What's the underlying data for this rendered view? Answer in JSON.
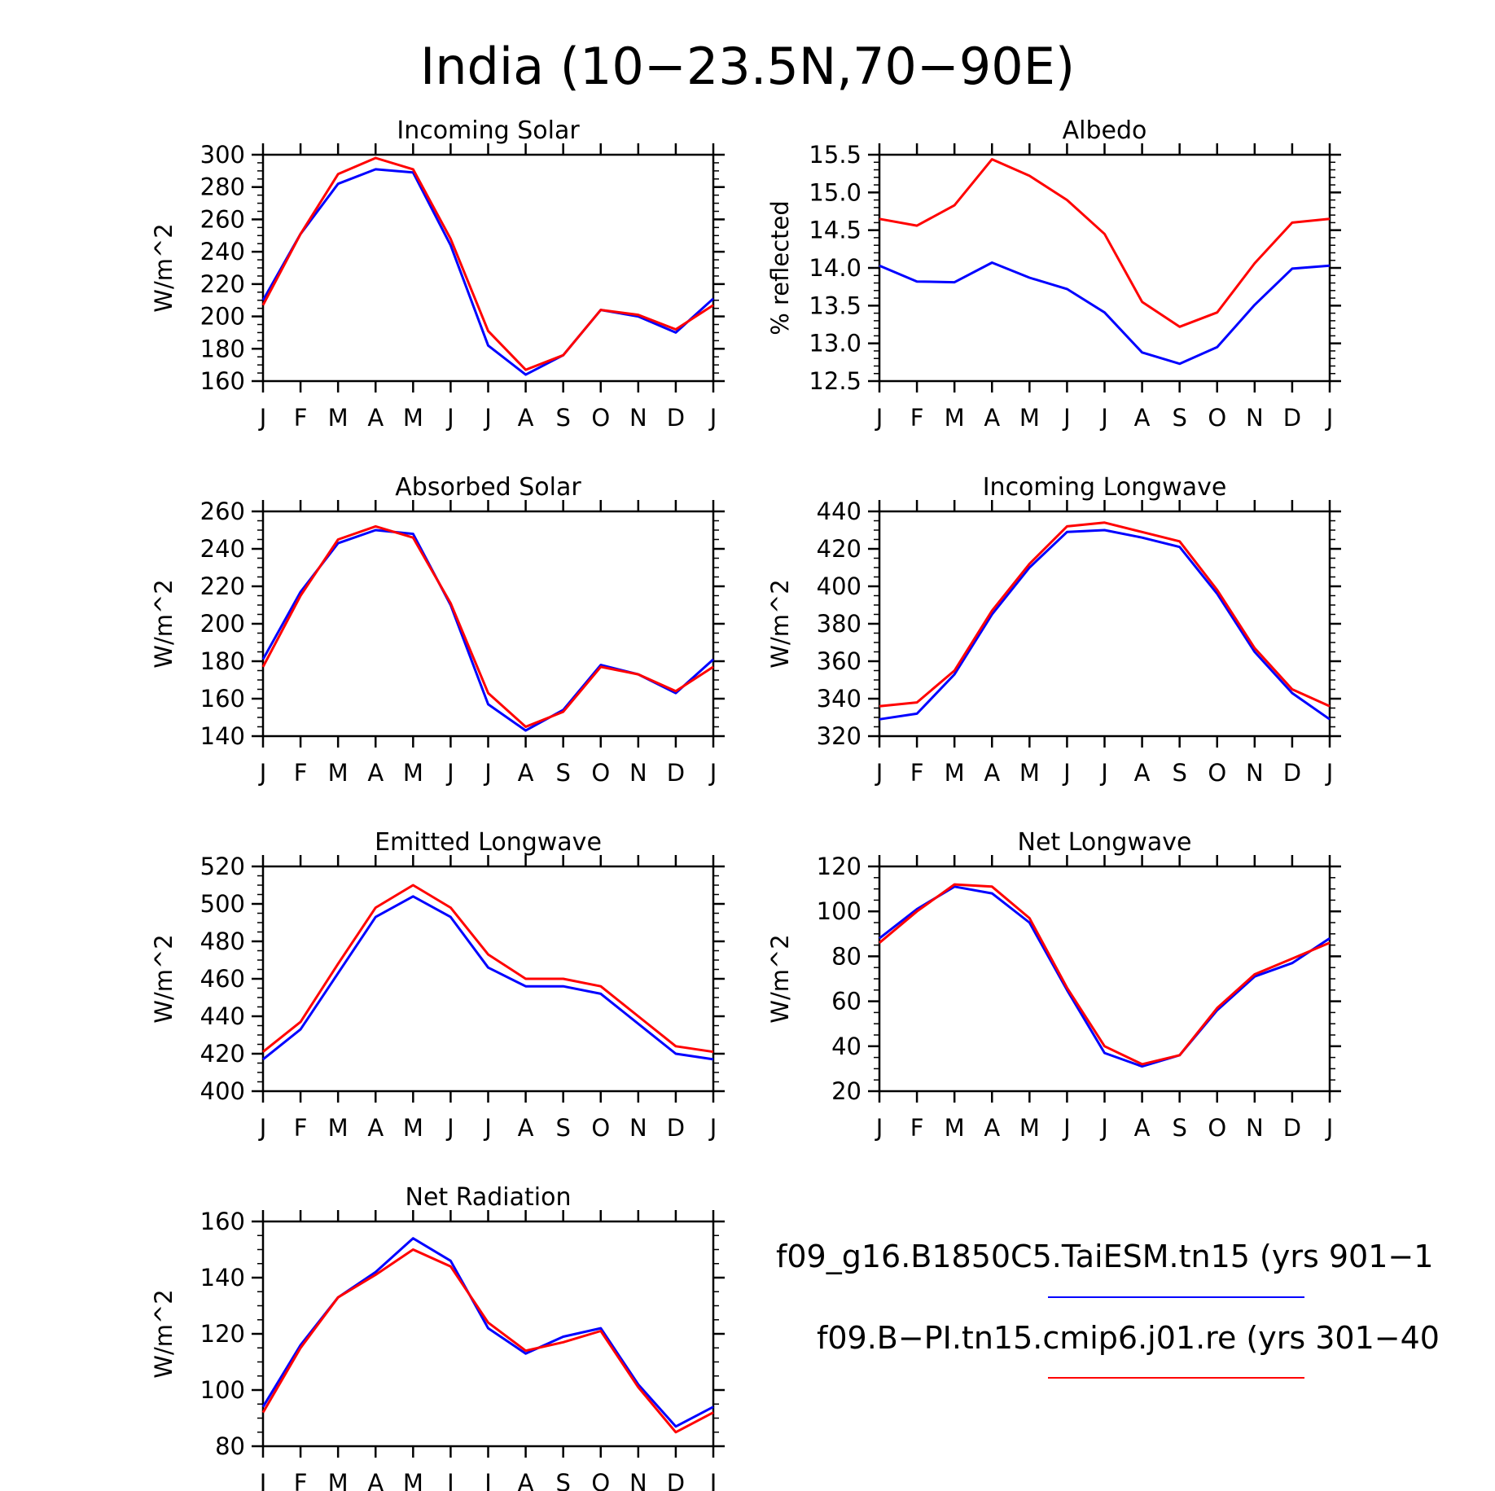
{
  "page": {
    "title": "India (10−23.5N,70−90E)"
  },
  "colors": {
    "series1": "#0000ff",
    "series2": "#ff0000",
    "axis": "#000000"
  },
  "legend": {
    "items": [
      {
        "label": "f09_g16.B1850C5.TaiESM.tn15 (yrs 901−1",
        "color": "#0000ff"
      },
      {
        "label": "f09.B−PI.tn15.cmip6.j01.re (yrs 301−40",
        "color": "#ff0000"
      }
    ]
  },
  "chart_data": [
    {
      "type": "line",
      "title": "Incoming Solar",
      "ylabel": "W/m^2",
      "xlabel": "",
      "categories": [
        "J",
        "F",
        "M",
        "A",
        "M",
        "J",
        "J",
        "A",
        "S",
        "O",
        "N",
        "D",
        "J"
      ],
      "ylim": [
        160,
        300
      ],
      "yticks": [
        160,
        180,
        200,
        220,
        240,
        260,
        280,
        300
      ],
      "ytick_labels": [
        "160",
        "180",
        "200",
        "220",
        "240",
        "260",
        "280",
        "300"
      ],
      "yminor": 5,
      "series": [
        {
          "color": "#0000ff",
          "values": [
            210,
            251,
            282,
            291,
            289,
            244,
            182,
            164,
            176,
            204,
            200,
            190,
            211
          ]
        },
        {
          "color": "#ff0000",
          "values": [
            207,
            251,
            288,
            298,
            291,
            248,
            191,
            167,
            176,
            204,
            201,
            192,
            207
          ]
        }
      ]
    },
    {
      "type": "line",
      "title": "Albedo",
      "ylabel": "% reflected",
      "xlabel": "",
      "categories": [
        "J",
        "F",
        "M",
        "A",
        "M",
        "J",
        "J",
        "A",
        "S",
        "O",
        "N",
        "D",
        "J"
      ],
      "ylim": [
        12.5,
        15.5
      ],
      "yticks": [
        12.5,
        13.0,
        13.5,
        14.0,
        14.5,
        15.0,
        15.5
      ],
      "ytick_labels": [
        "12.5",
        "13.0",
        "13.5",
        "14.0",
        "14.5",
        "15.0",
        "15.5"
      ],
      "yminor": 0.1,
      "series": [
        {
          "color": "#0000ff",
          "values": [
            14.03,
            13.82,
            13.81,
            14.07,
            13.87,
            13.72,
            13.41,
            12.88,
            12.73,
            12.95,
            13.51,
            13.99,
            14.03
          ]
        },
        {
          "color": "#ff0000",
          "values": [
            14.65,
            14.56,
            14.83,
            15.44,
            15.22,
            14.9,
            14.45,
            13.55,
            13.22,
            13.41,
            14.06,
            14.6,
            14.65
          ]
        }
      ]
    },
    {
      "type": "line",
      "title": "Absorbed Solar",
      "ylabel": "W/m^2",
      "xlabel": "",
      "categories": [
        "J",
        "F",
        "M",
        "A",
        "M",
        "J",
        "J",
        "A",
        "S",
        "O",
        "N",
        "D",
        "J"
      ],
      "ylim": [
        140,
        260
      ],
      "yticks": [
        140,
        160,
        180,
        200,
        220,
        240,
        260
      ],
      "ytick_labels": [
        "140",
        "160",
        "180",
        "200",
        "220",
        "240",
        "260"
      ],
      "yminor": 5,
      "series": [
        {
          "color": "#0000ff",
          "values": [
            181,
            217,
            243,
            250,
            248,
            210,
            157,
            143,
            154,
            178,
            173,
            163,
            181
          ]
        },
        {
          "color": "#ff0000",
          "values": [
            177,
            215,
            245,
            252,
            246,
            211,
            163,
            145,
            153,
            177,
            173,
            164,
            177
          ]
        }
      ]
    },
    {
      "type": "line",
      "title": "Incoming Longwave",
      "ylabel": "W/m^2",
      "xlabel": "",
      "categories": [
        "J",
        "F",
        "M",
        "A",
        "M",
        "J",
        "J",
        "A",
        "S",
        "O",
        "N",
        "D",
        "J"
      ],
      "ylim": [
        320,
        440
      ],
      "yticks": [
        320,
        340,
        360,
        380,
        400,
        420,
        440
      ],
      "ytick_labels": [
        "320",
        "340",
        "360",
        "380",
        "400",
        "420",
        "440"
      ],
      "yminor": 5,
      "series": [
        {
          "color": "#0000ff",
          "values": [
            329,
            332,
            353,
            385,
            410,
            429,
            430,
            426,
            421,
            396,
            365,
            343,
            329
          ]
        },
        {
          "color": "#ff0000",
          "values": [
            336,
            338,
            355,
            387,
            412,
            432,
            434,
            429,
            424,
            398,
            367,
            345,
            336
          ]
        }
      ]
    },
    {
      "type": "line",
      "title": "Emitted Longwave",
      "ylabel": "W/m^2",
      "xlabel": "",
      "categories": [
        "J",
        "F",
        "M",
        "A",
        "M",
        "J",
        "J",
        "A",
        "S",
        "O",
        "N",
        "D",
        "J"
      ],
      "ylim": [
        400,
        520
      ],
      "yticks": [
        400,
        420,
        440,
        460,
        480,
        500,
        520
      ],
      "ytick_labels": [
        "400",
        "420",
        "440",
        "460",
        "480",
        "500",
        "520"
      ],
      "yminor": 5,
      "series": [
        {
          "color": "#0000ff",
          "values": [
            417,
            433,
            463,
            493,
            504,
            493,
            466,
            456,
            456,
            452,
            436,
            420,
            417
          ]
        },
        {
          "color": "#ff0000",
          "values": [
            421,
            437,
            468,
            498,
            510,
            498,
            473,
            460,
            460,
            456,
            440,
            424,
            421
          ]
        }
      ]
    },
    {
      "type": "line",
      "title": "Net Longwave",
      "ylabel": "W/m^2",
      "xlabel": "",
      "categories": [
        "J",
        "F",
        "M",
        "A",
        "M",
        "J",
        "J",
        "A",
        "S",
        "O",
        "N",
        "D",
        "J"
      ],
      "ylim": [
        20,
        120
      ],
      "yticks": [
        20,
        40,
        60,
        80,
        100,
        120
      ],
      "ytick_labels": [
        "20",
        "40",
        "60",
        "80",
        "100",
        "120"
      ],
      "yminor": 5,
      "series": [
        {
          "color": "#0000ff",
          "values": [
            88,
            101,
            111,
            108,
            95,
            65,
            37,
            31,
            36,
            56,
            71,
            77,
            88
          ]
        },
        {
          "color": "#ff0000",
          "values": [
            86,
            100,
            112,
            111,
            97,
            66,
            40,
            32,
            36,
            57,
            72,
            79,
            86
          ]
        }
      ]
    },
    {
      "type": "line",
      "title": "Net Radiation",
      "ylabel": "W/m^2",
      "xlabel": "",
      "categories": [
        "J",
        "F",
        "M",
        "A",
        "M",
        "J",
        "J",
        "A",
        "S",
        "O",
        "N",
        "D",
        "J"
      ],
      "ylim": [
        80,
        160
      ],
      "yticks": [
        80,
        100,
        120,
        140,
        160
      ],
      "ytick_labels": [
        "80",
        "100",
        "120",
        "140",
        "160"
      ],
      "yminor": 5,
      "series": [
        {
          "color": "#0000ff",
          "values": [
            94,
            116,
            133,
            142,
            154,
            146,
            122,
            113,
            119,
            122,
            102,
            87,
            94
          ]
        },
        {
          "color": "#ff0000",
          "values": [
            92,
            115,
            133,
            141,
            150,
            144,
            124,
            114,
            117,
            121,
            101,
            85,
            92
          ]
        }
      ]
    }
  ]
}
